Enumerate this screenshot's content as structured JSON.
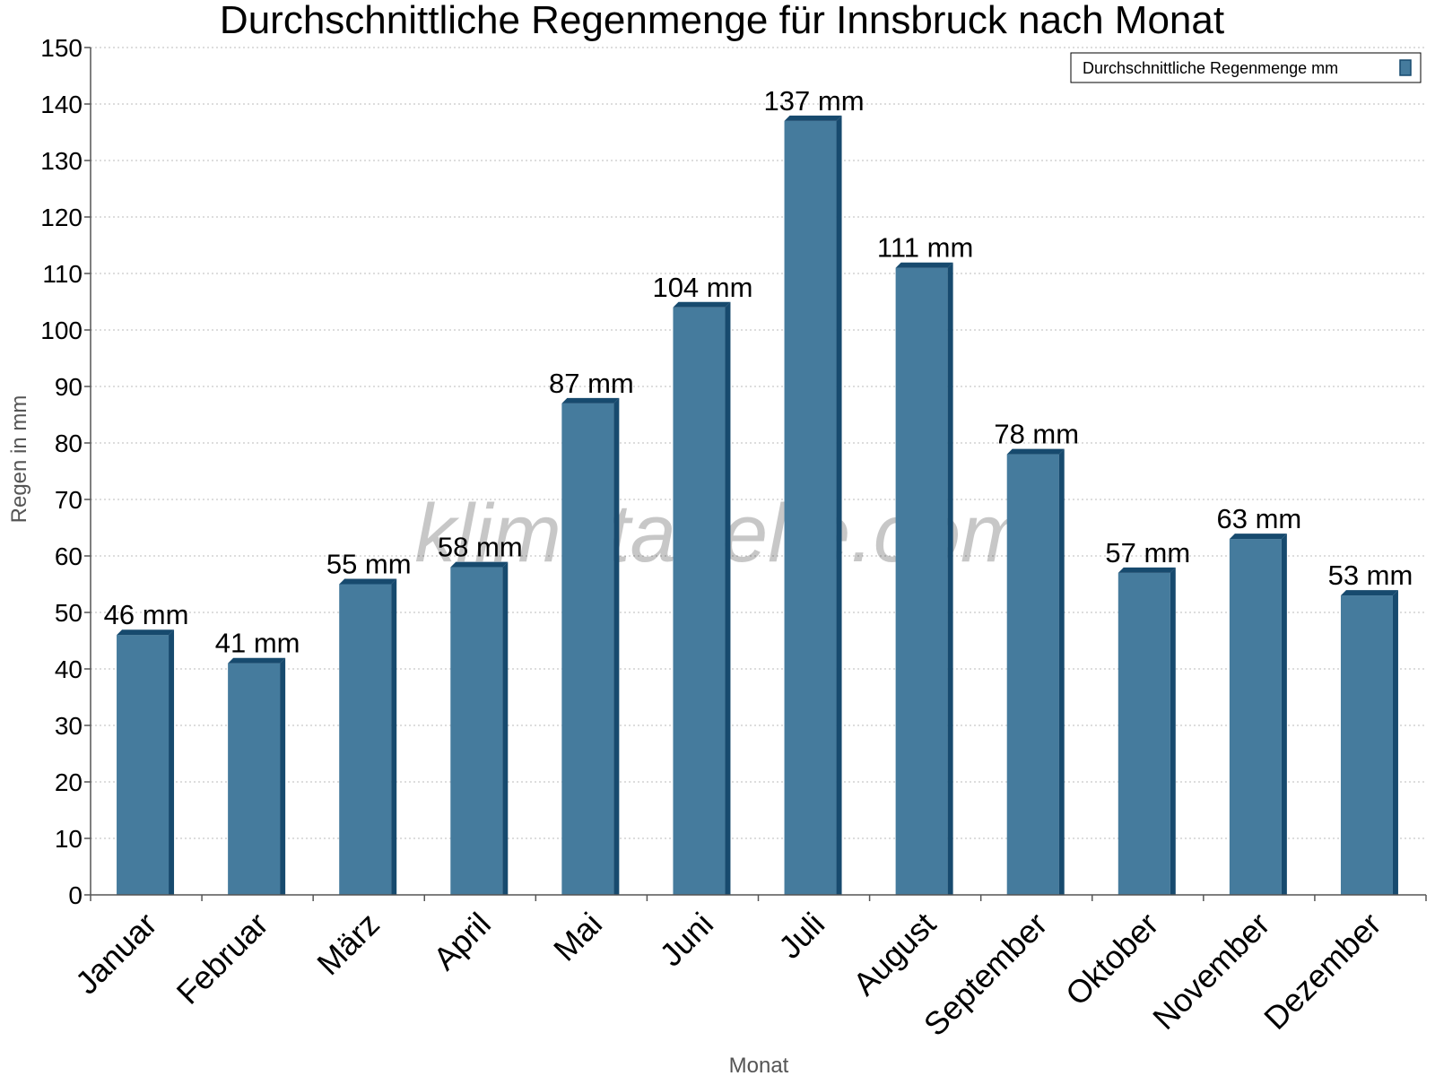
{
  "chart_data": {
    "type": "bar",
    "title": "Durchschnittliche Regenmenge für Innsbruck nach Monat",
    "xlabel": "Monat",
    "ylabel": "Regen in mm",
    "ylim": [
      0,
      150
    ],
    "ytick_step": 10,
    "grid": true,
    "legend_position": "top-right",
    "categories": [
      "Januar",
      "Februar",
      "März",
      "April",
      "Mai",
      "Juni",
      "Juli",
      "August",
      "September",
      "Oktober",
      "November",
      "Dezember"
    ],
    "series": [
      {
        "name": "Durchschnittliche Regenmenge mm",
        "values": [
          46,
          41,
          55,
          58,
          87,
          104,
          137,
          111,
          78,
          57,
          63,
          53
        ],
        "labels": [
          "46 mm",
          "41 mm",
          "55 mm",
          "58 mm",
          "87 mm",
          "104 mm",
          "137 mm",
          "111 mm",
          "78 mm",
          "57 mm",
          "63 mm",
          "53 mm"
        ]
      }
    ],
    "watermark": "klimatabelle.com"
  },
  "colors": {
    "bar_front": "#457b9d",
    "bar_side": "#174a6e",
    "grid": "#bbbbbb",
    "axis": "#555555"
  }
}
